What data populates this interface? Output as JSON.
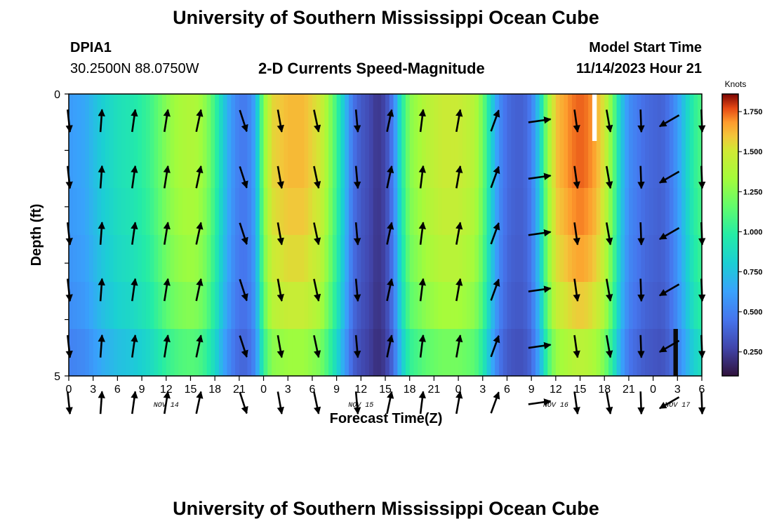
{
  "page": {
    "title_top": "University of Southern Mississippi Ocean Cube",
    "title_bottom": "University of Southern Mississippi Ocean Cube",
    "station_id": "DPIA1",
    "station_coords": "30.2500N  88.0750W",
    "chart_title": "2-D Currents Speed-Magnitude",
    "model_label": "Model Start Time",
    "model_time": "11/14/2023 Hour 21"
  },
  "chart_data": {
    "type": "heatmap",
    "title": "2-D Currents Speed-Magnitude",
    "xlabel": "Forecast Time(Z)",
    "ylabel": "Depth (ft)",
    "colorbar_label": "Knots",
    "colorbar_ticks": [
      "0.250",
      "0.500",
      "0.750",
      "1.000",
      "1.250",
      "1.500",
      "1.750"
    ],
    "colorbar_range": [
      0.1,
      1.86
    ],
    "y_ticks": [
      "0",
      "5"
    ],
    "y_range": [
      0,
      5
    ],
    "x_range": [
      0,
      78
    ],
    "x_tick_hours": [
      0,
      3,
      6,
      9,
      12,
      15,
      18,
      21,
      24,
      27,
      30,
      33,
      36,
      39,
      42,
      45,
      48,
      51,
      54,
      57,
      60,
      63,
      66,
      69,
      72,
      75,
      78
    ],
    "x_tick_labels": [
      "0",
      "3",
      "6",
      "9",
      "12",
      "15",
      "18",
      "21",
      "0",
      "3",
      "6",
      "9",
      "12",
      "15",
      "18",
      "21",
      "0",
      "3",
      "6",
      "9",
      "12",
      "15",
      "18",
      "21",
      "0",
      "3",
      "6"
    ],
    "day_labels": [
      {
        "label": "NOV 14",
        "hour": 12
      },
      {
        "label": "NOV 15",
        "hour": 36
      },
      {
        "label": "NOV 16",
        "hour": 60
      },
      {
        "label": "NOV 17",
        "hour": 75
      }
    ],
    "speed_profile": [
      [
        0,
        0.6
      ],
      [
        2,
        0.65
      ],
      [
        4,
        0.8
      ],
      [
        6,
        0.9
      ],
      [
        8,
        0.95
      ],
      [
        10,
        1.05
      ],
      [
        11,
        1.15
      ],
      [
        12,
        1.25
      ],
      [
        13,
        1.32
      ],
      [
        14,
        1.36
      ],
      [
        15,
        1.38
      ],
      [
        16,
        1.35
      ],
      [
        17,
        1.25
      ],
      [
        18,
        1.05
      ],
      [
        19,
        0.8
      ],
      [
        20,
        0.6
      ],
      [
        21,
        0.48
      ],
      [
        22,
        0.48
      ],
      [
        23,
        0.65
      ],
      [
        24,
        1.25
      ],
      [
        25,
        1.55
      ],
      [
        27,
        1.62
      ],
      [
        29,
        1.62
      ],
      [
        31,
        1.5
      ],
      [
        32,
        1.3
      ],
      [
        33,
        1.05
      ],
      [
        34,
        0.75
      ],
      [
        35,
        0.45
      ],
      [
        36,
        0.35
      ],
      [
        37,
        0.3
      ],
      [
        38,
        0.22
      ],
      [
        39,
        0.28
      ],
      [
        40,
        0.5
      ],
      [
        41,
        0.95
      ],
      [
        42,
        1.25
      ],
      [
        44,
        1.4
      ],
      [
        46,
        1.48
      ],
      [
        48,
        1.48
      ],
      [
        50,
        1.4
      ],
      [
        51,
        1.2
      ],
      [
        52,
        0.85
      ],
      [
        53,
        0.55
      ],
      [
        54,
        0.42
      ],
      [
        55,
        0.38
      ],
      [
        56,
        0.38
      ],
      [
        57,
        0.48
      ],
      [
        58,
        0.8
      ],
      [
        59,
        1.3
      ],
      [
        60,
        1.6
      ],
      [
        62,
        1.72
      ],
      [
        63,
        1.75
      ],
      [
        64,
        1.72
      ],
      [
        65,
        1.65
      ],
      [
        66,
        1.5
      ],
      [
        67,
        1.2
      ],
      [
        68,
        0.8
      ],
      [
        69,
        0.55
      ],
      [
        70,
        0.48
      ],
      [
        71,
        0.42
      ],
      [
        72,
        0.4
      ],
      [
        73,
        0.38
      ],
      [
        74,
        0.45
      ],
      [
        75,
        0.6
      ],
      [
        76,
        0.8
      ],
      [
        77,
        1.0
      ],
      [
        78,
        1.1
      ]
    ],
    "depth_variation": [
      1.0,
      1.0,
      0.98,
      0.95,
      0.9,
      0.8
    ],
    "missing_cells": [
      {
        "hour": 64.5,
        "row": 0,
        "value": "missing"
      },
      {
        "hour": 74.5,
        "row": 5,
        "value": "low"
      }
    ],
    "vector_rows": [
      0,
      1,
      2,
      3,
      4,
      5
    ],
    "vectors": [
      {
        "hour": 0,
        "dir": 174
      },
      {
        "hour": 4,
        "dir": 4
      },
      {
        "hour": 8,
        "dir": 8
      },
      {
        "hour": 12,
        "dir": 9
      },
      {
        "hour": 16,
        "dir": 12
      },
      {
        "hour": 21.5,
        "dir": 162
      },
      {
        "hour": 26,
        "dir": 170
      },
      {
        "hour": 30.5,
        "dir": 168
      },
      {
        "hour": 35.5,
        "dir": 175
      },
      {
        "hour": 39.5,
        "dir": 12
      },
      {
        "hour": 43.5,
        "dir": 7
      },
      {
        "hour": 48,
        "dir": 10
      },
      {
        "hour": 52.5,
        "dir": 20
      },
      {
        "hour": 58,
        "dir": 82
      },
      {
        "hour": 62.5,
        "dir": 172
      },
      {
        "hour": 66.5,
        "dir": 170
      },
      {
        "hour": 70.5,
        "dir": 178
      },
      {
        "hour": 74,
        "dir": 240
      },
      {
        "hour": 78,
        "dir": 178
      }
    ]
  }
}
